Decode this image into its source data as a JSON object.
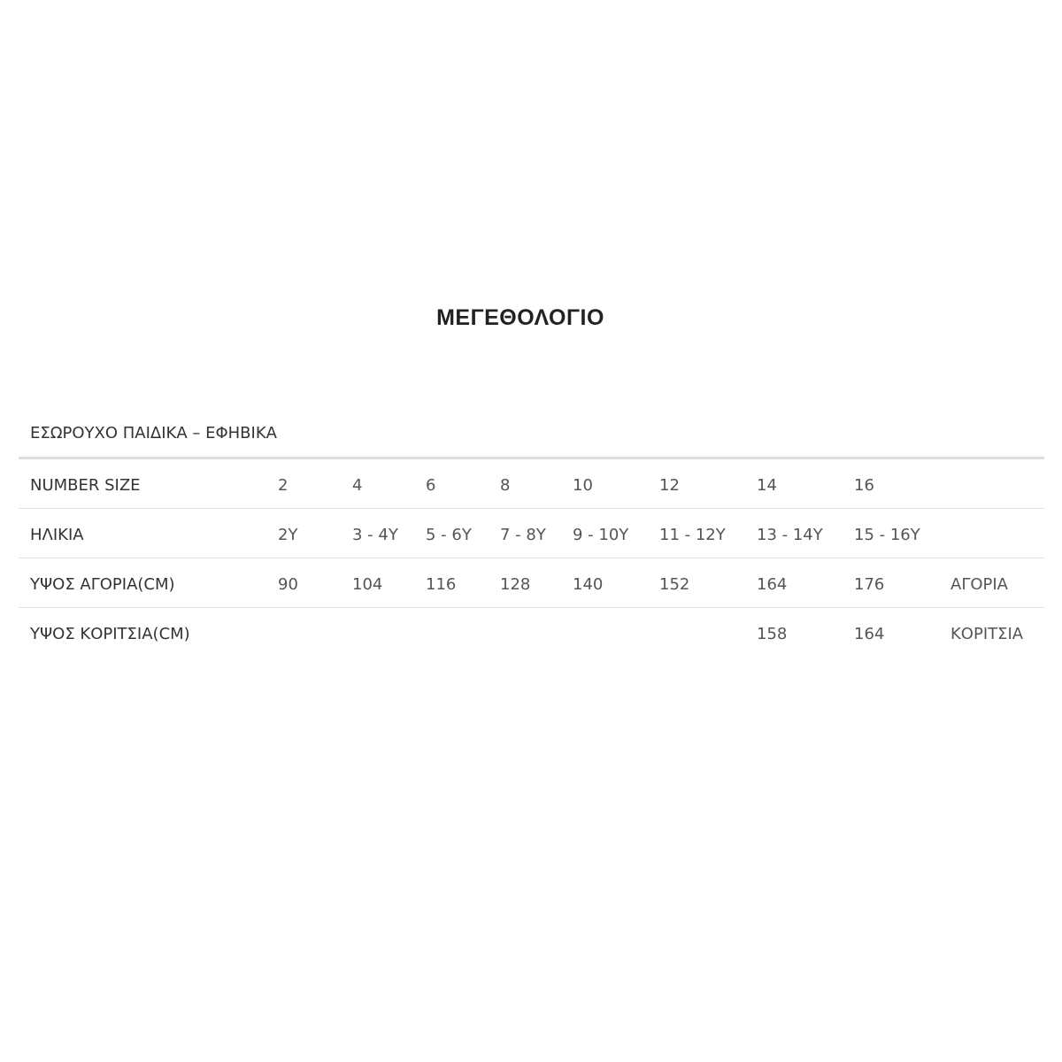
{
  "title": "ΜΕΓΕΘΟΛΟΓΙΟ",
  "subtitle": "ΕΣΩΡΟΥΧΟ ΠΑΙΔΙΚΑ – ΕΦΗΒΙΚΑ",
  "rows": [
    {
      "label": "NUMBER SIZE",
      "cells": [
        "2",
        "4",
        "6",
        "8",
        "10",
        "12",
        "14",
        "16",
        ""
      ]
    },
    {
      "label": "ΗΛΙΚΙΑ",
      "cells": [
        "2Y",
        "3 - 4Y",
        "5 - 6Y",
        "7 - 8Y",
        "9 - 10Y",
        "11 - 12Y",
        "13 - 14Y",
        "15 - 16Y",
        ""
      ]
    },
    {
      "label": "ΥΨΟΣ ΑΓΟΡΙΑ(CM)",
      "cells": [
        "90",
        "104",
        "116",
        "128",
        "140",
        "152",
        "164",
        "176",
        "ΑΓΟΡΙΑ"
      ]
    },
    {
      "label": "ΥΨΟΣ ΚΟΡΙΤΣΙΑ(CM)",
      "cells": [
        "",
        "",
        "",
        "",
        "",
        "",
        "158",
        "164",
        "ΚΟΡΙΤΣΙΑ"
      ]
    }
  ]
}
